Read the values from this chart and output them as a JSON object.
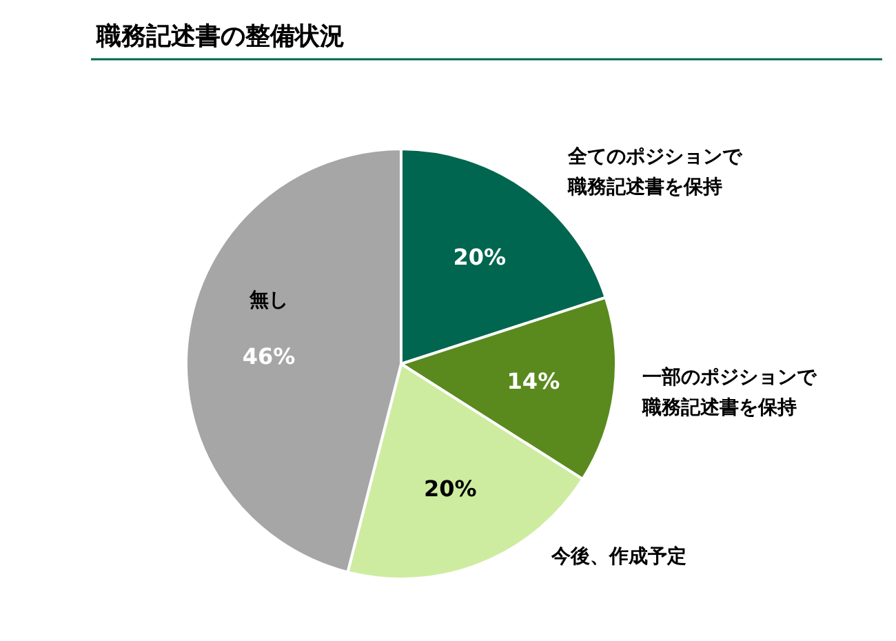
{
  "chart_data": {
    "type": "pie",
    "title": "職務記述書の整備状況",
    "categories": [
      "全てのポジションで職務記述書を保持",
      "一部のポジションで職務記述書を保持",
      "今後、作成予定",
      "無し"
    ],
    "value_labels": [
      "20%",
      "14%",
      "20%",
      "46%"
    ],
    "values": [
      20,
      14,
      20,
      46
    ],
    "colors": [
      "#00664f",
      "#5a8a1e",
      "#cdeca0",
      "#a6a6a6"
    ]
  }
}
